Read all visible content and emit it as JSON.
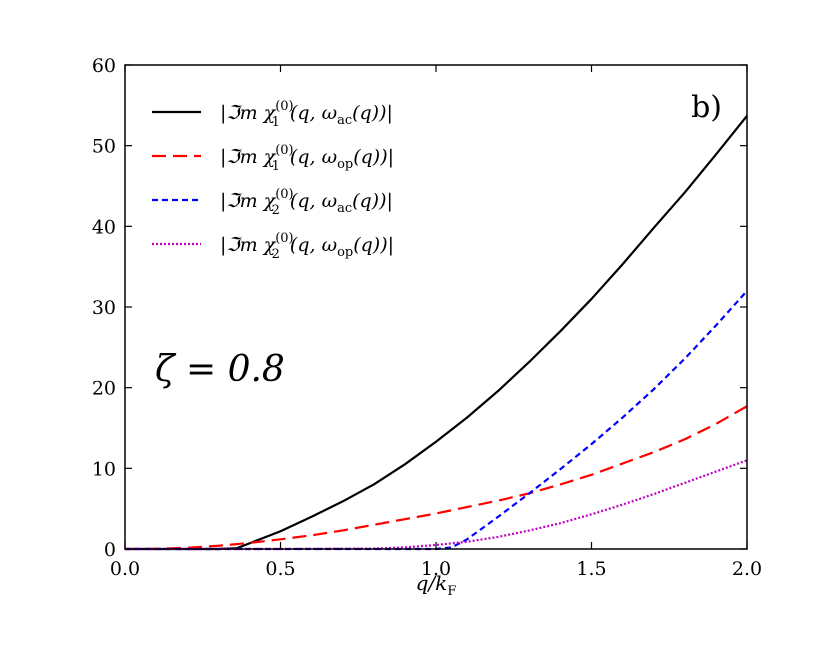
{
  "chart_data": {
    "type": "line",
    "xlabel": "q/k",
    "xlabel_sub": "F",
    "ylabel": "",
    "xlim": [
      0.0,
      2.0
    ],
    "ylim": [
      0,
      60
    ],
    "xticks": [
      0.0,
      0.5,
      1.0,
      1.5,
      2.0
    ],
    "xtick_labels": [
      "0.0",
      "0.5",
      "1.0",
      "1.5",
      "2.0"
    ],
    "yticks": [
      0,
      10,
      20,
      30,
      40,
      50,
      60
    ],
    "ytick_labels": [
      "0",
      "10",
      "20",
      "30",
      "40",
      "50",
      "60"
    ],
    "grid": false,
    "legend_position": "top-left",
    "panel_label": "b)",
    "annotation": "ζ = 0.8",
    "series": [
      {
        "name": "|ℑm χ₁⁽⁰⁾(q, ω_ac(q))|",
        "legend_main": "|ℑm χ",
        "legend_sub": "1",
        "legend_sup": "(0)",
        "legend_tail": "(q, ω",
        "legend_tail_sub": "ac",
        "legend_end": "(q))|",
        "color": "#000000",
        "style": "solid",
        "x": [
          0.0,
          0.1,
          0.2,
          0.3,
          0.36,
          0.4,
          0.5,
          0.6,
          0.7,
          0.8,
          0.9,
          1.0,
          1.1,
          1.2,
          1.3,
          1.4,
          1.5,
          1.6,
          1.7,
          1.8,
          1.9,
          2.0
        ],
        "y": [
          0,
          0,
          0,
          0,
          0.1,
          0.7,
          2.2,
          4.0,
          5.9,
          8.0,
          10.5,
          13.3,
          16.3,
          19.6,
          23.2,
          27.0,
          31.0,
          35.3,
          39.8,
          44.2,
          48.9,
          53.7
        ]
      },
      {
        "name": "|ℑm χ₁⁽⁰⁾(q, ω_op(q))|",
        "legend_main": "|ℑm χ",
        "legend_sub": "1",
        "legend_sup": "(0)",
        "legend_tail": "(q, ω",
        "legend_tail_sub": "op",
        "legend_end": "(q))|",
        "color": "#ff0000",
        "style": "dashed",
        "x": [
          0.0,
          0.1,
          0.2,
          0.3,
          0.4,
          0.5,
          0.6,
          0.7,
          0.8,
          0.9,
          1.0,
          1.1,
          1.2,
          1.3,
          1.4,
          1.5,
          1.6,
          1.7,
          1.8,
          1.9,
          2.0
        ],
        "y": [
          0,
          0.02,
          0.15,
          0.4,
          0.75,
          1.2,
          1.7,
          2.3,
          3.0,
          3.7,
          4.4,
          5.2,
          6.0,
          6.9,
          8.0,
          9.2,
          10.6,
          12.0,
          13.6,
          15.5,
          17.7
        ]
      },
      {
        "name": "|ℑm χ₂⁽⁰⁾(q, ω_ac(q))|",
        "legend_main": "|ℑm χ",
        "legend_sub": "2",
        "legend_sup": "(0)",
        "legend_tail": "(q, ω",
        "legend_tail_sub": "ac",
        "legend_end": "(q))|",
        "color": "#0000ff",
        "style": "short-dashed",
        "x": [
          0.0,
          0.5,
          1.0,
          1.05,
          1.1,
          1.2,
          1.3,
          1.4,
          1.5,
          1.6,
          1.7,
          1.8,
          1.9,
          2.0
        ],
        "y": [
          0,
          0,
          0,
          0.2,
          1.2,
          4.0,
          6.9,
          9.9,
          13.0,
          16.3,
          19.8,
          23.6,
          27.7,
          32.0
        ]
      },
      {
        "name": "|ℑm χ₂⁽⁰⁾(q, ω_op(q))|",
        "legend_main": "|ℑm χ",
        "legend_sub": "2",
        "legend_sup": "(0)",
        "legend_tail": "(q, ω",
        "legend_tail_sub": "op",
        "legend_end": "(q))|",
        "color": "#bf00bf",
        "style": "dotted",
        "x": [
          0.0,
          0.5,
          0.8,
          0.9,
          1.0,
          1.1,
          1.2,
          1.3,
          1.4,
          1.5,
          1.6,
          1.7,
          1.8,
          1.9,
          2.0
        ],
        "y": [
          0,
          0,
          0.05,
          0.2,
          0.5,
          0.9,
          1.5,
          2.3,
          3.2,
          4.3,
          5.5,
          6.8,
          8.2,
          9.6,
          11.0
        ]
      }
    ]
  }
}
